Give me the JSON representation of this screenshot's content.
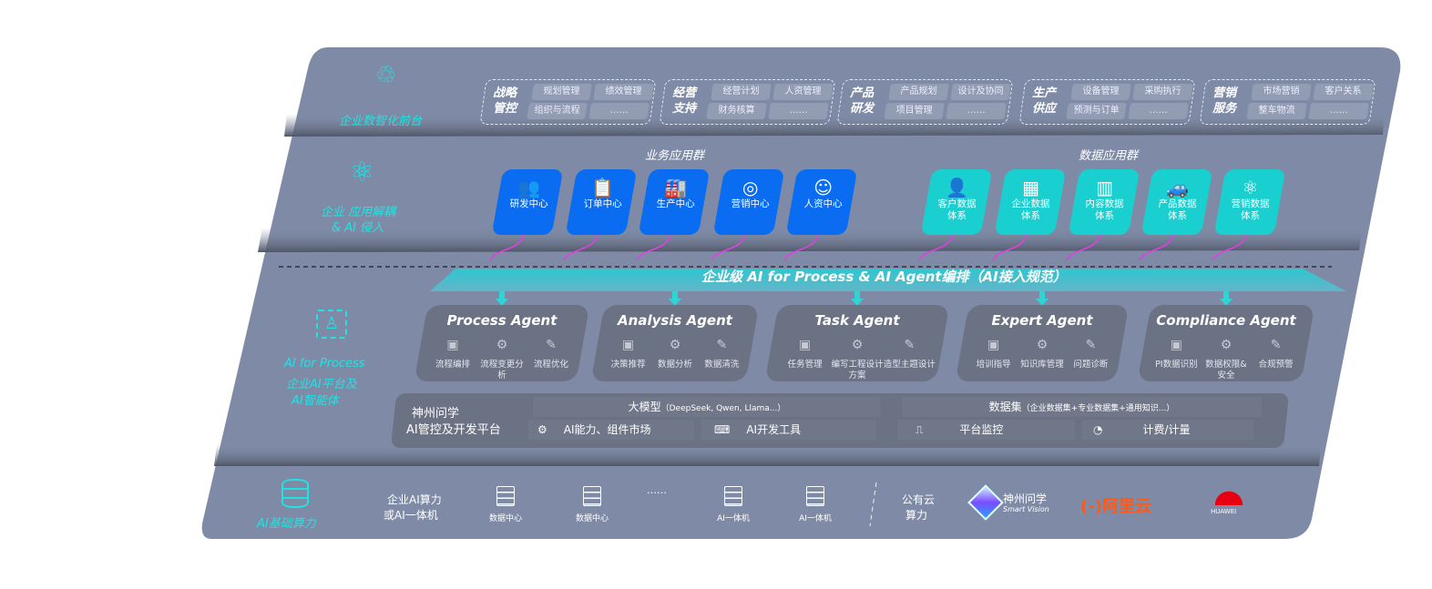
{
  "layers": {
    "front": {
      "icon": "brain-icon",
      "label": "企业数智化前台"
    },
    "apps": {
      "icon": "molecule-icon",
      "label_line1": "企业 应用解耦",
      "label_line2": "& AI 侵入"
    },
    "ai": {
      "icon": "face-scan-icon",
      "label_line1": "AI for Process",
      "label_line2": "企业AI平台及",
      "label_line3": "AI智能体"
    },
    "infra": {
      "icon": "database-icon",
      "label": "AI基础算力"
    }
  },
  "front_groups": [
    {
      "title": "战略管控",
      "items": [
        "规划管理",
        "绩效管理",
        "组织与流程",
        "……"
      ]
    },
    {
      "title": "经营支持",
      "items": [
        "经营计划",
        "人资管理",
        "财务核算",
        "……"
      ]
    },
    {
      "title": "产品研发",
      "items": [
        "产品规划",
        "设计及协同",
        "项目管理",
        "……"
      ]
    },
    {
      "title": "生产供应",
      "items": [
        "设备管理",
        "采购执行",
        "预测与订单",
        "……"
      ]
    },
    {
      "title": "营销服务",
      "items": [
        "市场营销",
        "客户关系",
        "整车物流",
        "……"
      ]
    }
  ],
  "business_apps": {
    "title": "业务应用群",
    "color": "#0a6cf0",
    "cards": [
      {
        "label": "研发中心",
        "icon": "users-icon"
      },
      {
        "label": "订单中心",
        "icon": "clipboard-icon"
      },
      {
        "label": "生产中心",
        "icon": "factory-icon"
      },
      {
        "label": "营销中心",
        "icon": "target-icon"
      },
      {
        "label": "人资中心",
        "icon": "person-icon"
      }
    ]
  },
  "data_apps": {
    "title": "数据应用群",
    "color": "#19cfcf",
    "cards": [
      {
        "label": "客户数据体系",
        "icon": "user-icon"
      },
      {
        "label": "企业数据体系",
        "icon": "building-icon"
      },
      {
        "label": "内容数据体系",
        "icon": "books-icon"
      },
      {
        "label": "产品数据体系",
        "icon": "car-icon"
      },
      {
        "label": "营销数据体系",
        "icon": "atom-icon"
      }
    ]
  },
  "banner": "企业级 AI for Process & AI Agent编排（AI接入规范）",
  "agents": [
    {
      "name": "Process Agent",
      "subs": [
        "流程编排",
        "流程变更分析",
        "流程优化"
      ]
    },
    {
      "name": "Analysis Agent",
      "subs": [
        "决策推荐",
        "数据分析",
        "数据清洗"
      ]
    },
    {
      "name": "Task Agent",
      "subs": [
        "任务管理",
        "编写工程设计方案",
        "造型主题设计"
      ]
    },
    {
      "name": "Expert Agent",
      "subs": [
        "培训指导",
        "知识库管理",
        "问题诊断"
      ]
    },
    {
      "name": "Compliance Agent",
      "subs": [
        "PI数据识别",
        "数据权限&安全",
        "合规预警"
      ]
    }
  ],
  "platform": {
    "name_line1": "神州问学",
    "name_line2": "AI管控及开发平台",
    "model_title": "大模型",
    "model_note": "（DeepSeek, Qwen, Llama...）",
    "market": "AI能力、组件市场",
    "devtools": "AI开发工具",
    "dataset_title": "数据集",
    "dataset_note": "（企业数据集+专业数据集+通用知识...）",
    "monitor": "平台监控",
    "billing": "计费/计量"
  },
  "infra": {
    "private_line1": "企业AI算力",
    "private_line2": "或AI一体机",
    "servers": [
      "数据中心",
      "数据中心",
      "AI一体机",
      "AI一体机"
    ],
    "ellipsis": "……",
    "public_line1": "公有云",
    "public_line2": "算力",
    "vendors": [
      {
        "name": "神州问学",
        "sub": "Smart Vision"
      },
      {
        "name": "阿里云",
        "mark": "(-)"
      },
      {
        "name": "HUAWEI"
      }
    ]
  },
  "colors": {
    "panel": "#7f8ba6",
    "band": "#6b7386",
    "accent_cyan": "#1fe3e3",
    "arrow": "#e040e0",
    "aliyun": "#ff5a14",
    "huawei": "#e60012"
  }
}
